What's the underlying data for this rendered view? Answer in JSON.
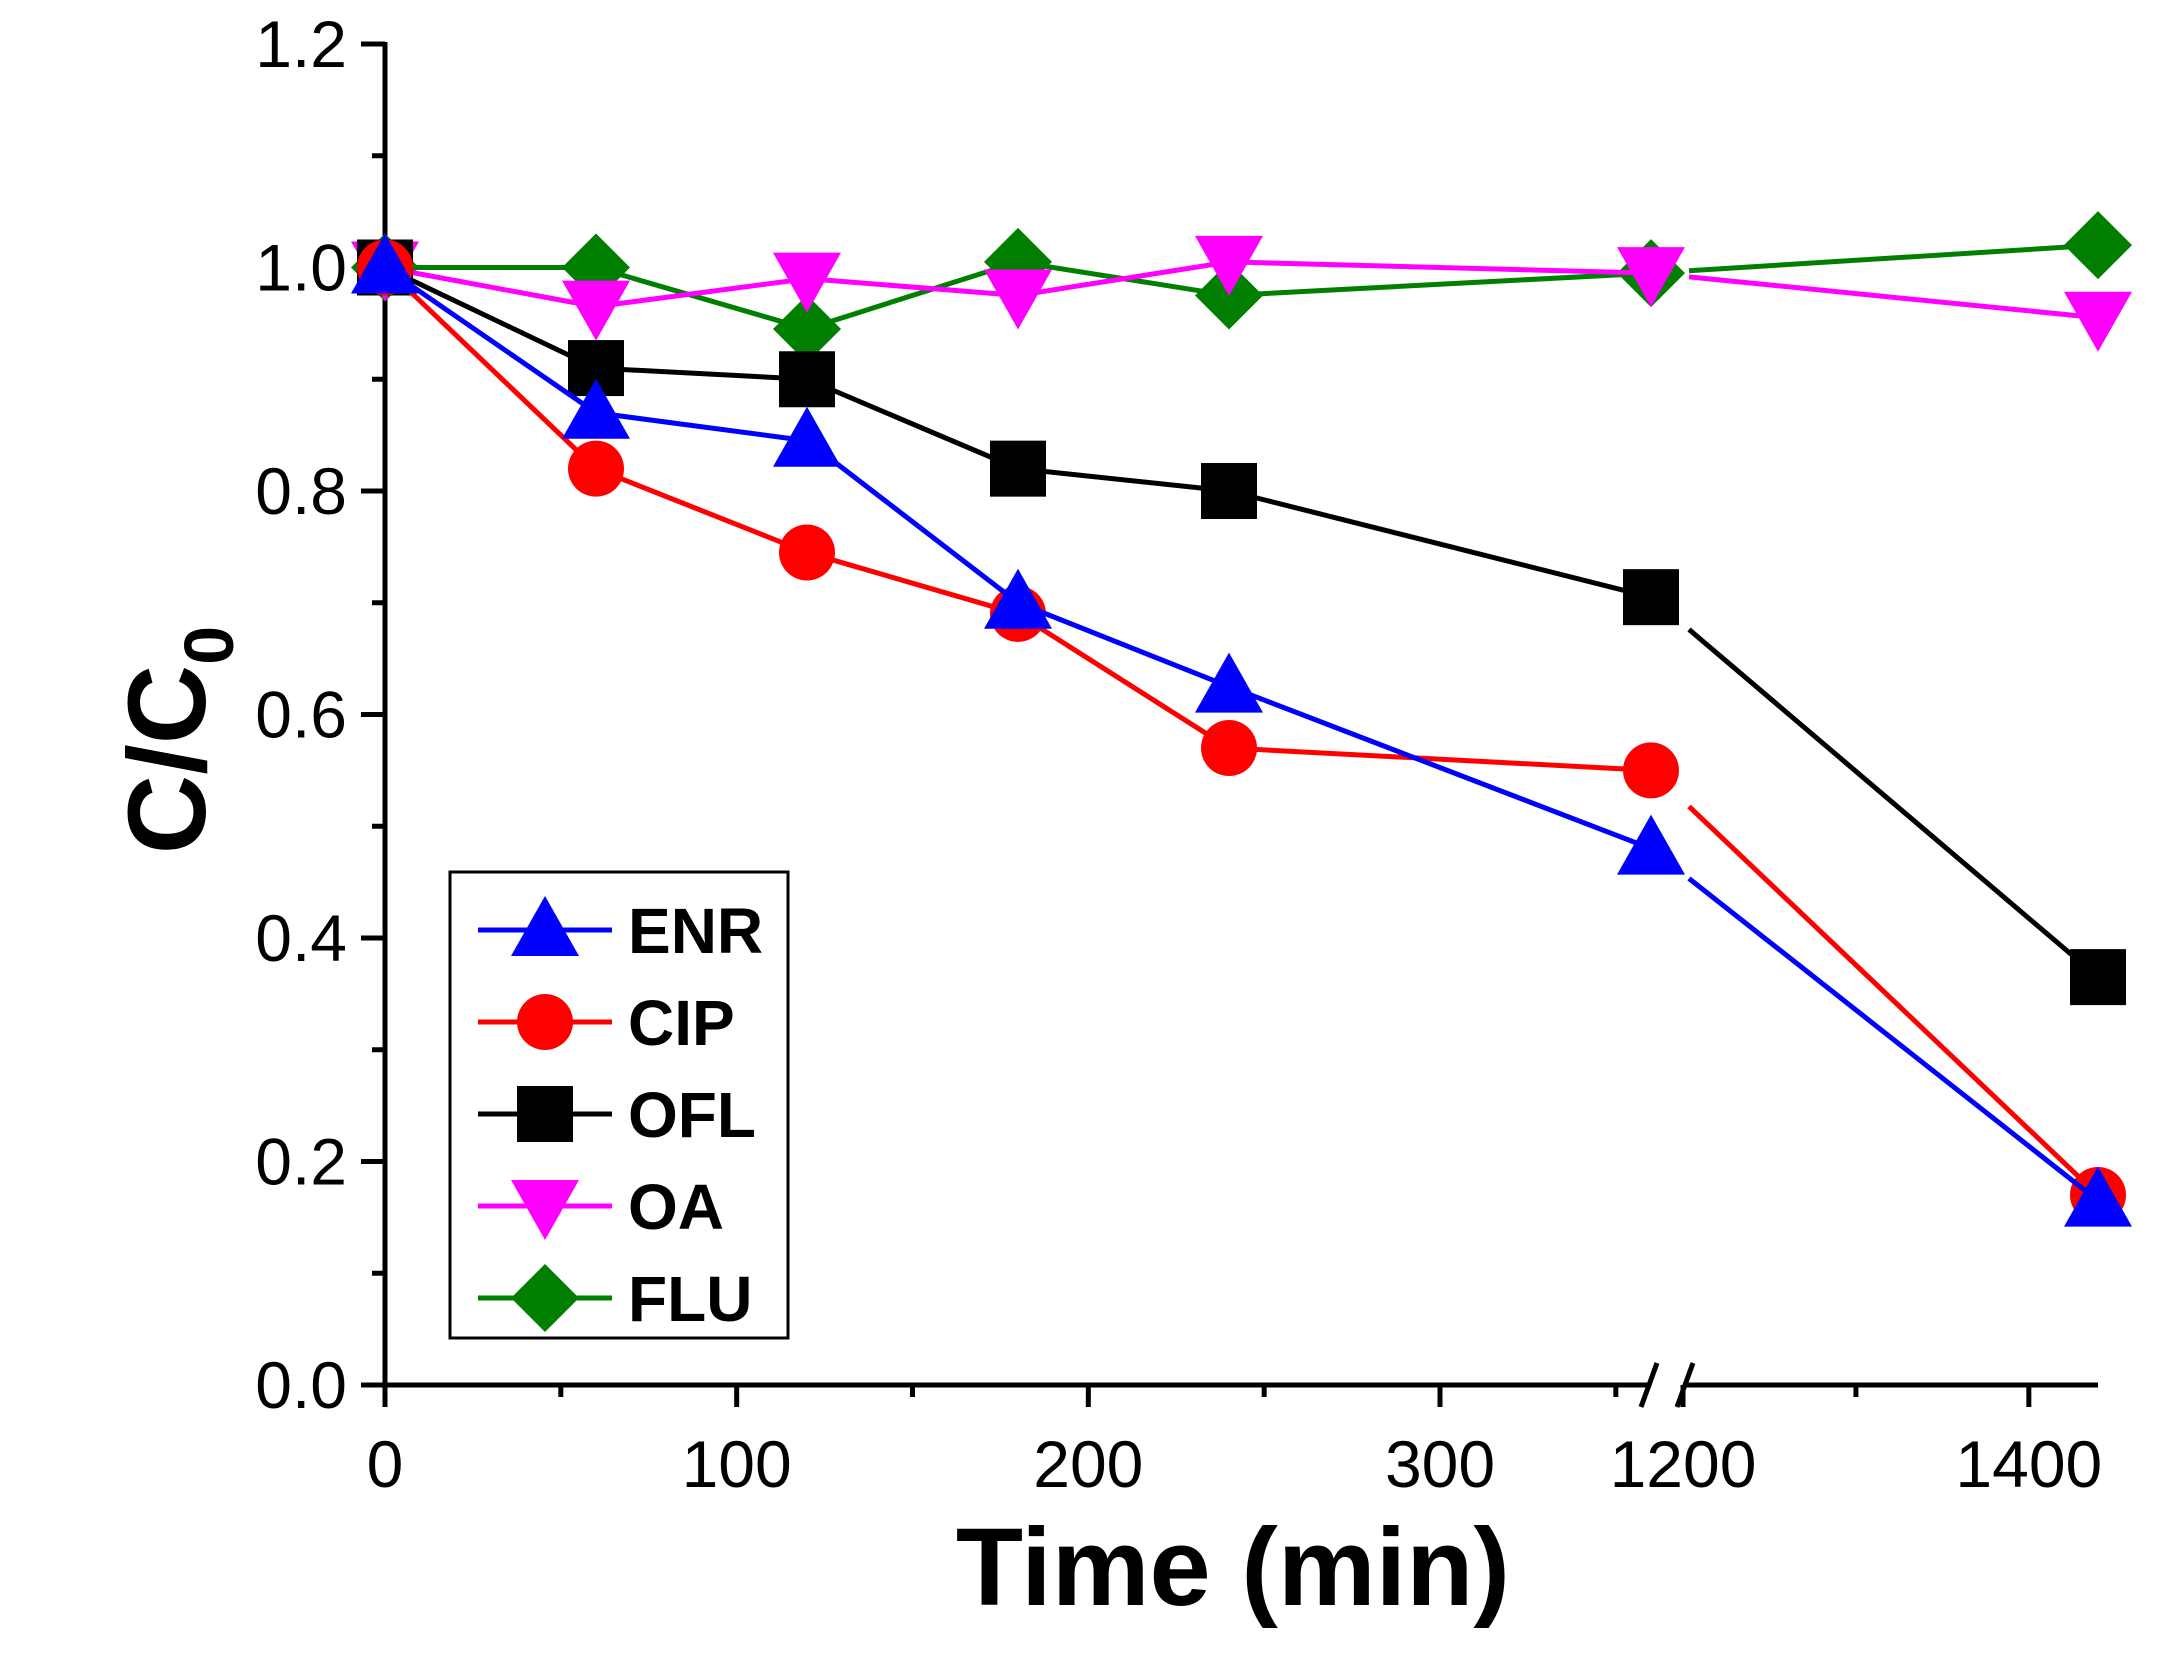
{
  "chart_data": {
    "type": "line",
    "xlabel": "Time (min)",
    "ylabel": "C/C",
    "ylabel_subscript": "0",
    "ylim": [
      0.0,
      1.2
    ],
    "yticks": [
      "0.0",
      "0.2",
      "0.4",
      "0.6",
      "0.8",
      "1.0",
      "1.2"
    ],
    "xticks": [
      "0",
      "100",
      "200",
      "300",
      "1200",
      "1400"
    ],
    "x_axis_break": {
      "before": 360,
      "after": 1200
    },
    "x_segment_ranges": [
      [
        0,
        360
      ],
      [
        1200,
        1440
      ]
    ],
    "x": [
      0,
      60,
      120,
      180,
      240,
      360,
      1440
    ],
    "legend_position": "bottom-left",
    "grid": false,
    "series": [
      {
        "name": "ENR",
        "color": "#0000ff",
        "marker": "triangle-up",
        "values": [
          1.0,
          0.87,
          0.845,
          0.7,
          0.625,
          0.48,
          0.165
        ]
      },
      {
        "name": "CIP",
        "color": "#ff0000",
        "marker": "circle",
        "values": [
          1.0,
          0.82,
          0.745,
          0.69,
          0.57,
          0.55,
          0.17
        ]
      },
      {
        "name": "OFL",
        "color": "#000000",
        "marker": "square",
        "values": [
          1.0,
          0.91,
          0.9,
          0.82,
          0.8,
          0.705,
          0.365
        ]
      },
      {
        "name": "OA",
        "color": "#ff00ff",
        "marker": "triangle-down",
        "values": [
          1.0,
          0.965,
          0.99,
          0.975,
          1.005,
          0.995,
          0.955
        ]
      },
      {
        "name": "FLU",
        "color": "#007f00",
        "marker": "diamond",
        "values": [
          1.0,
          1.0,
          0.945,
          1.005,
          0.975,
          0.995,
          1.02
        ]
      }
    ]
  }
}
